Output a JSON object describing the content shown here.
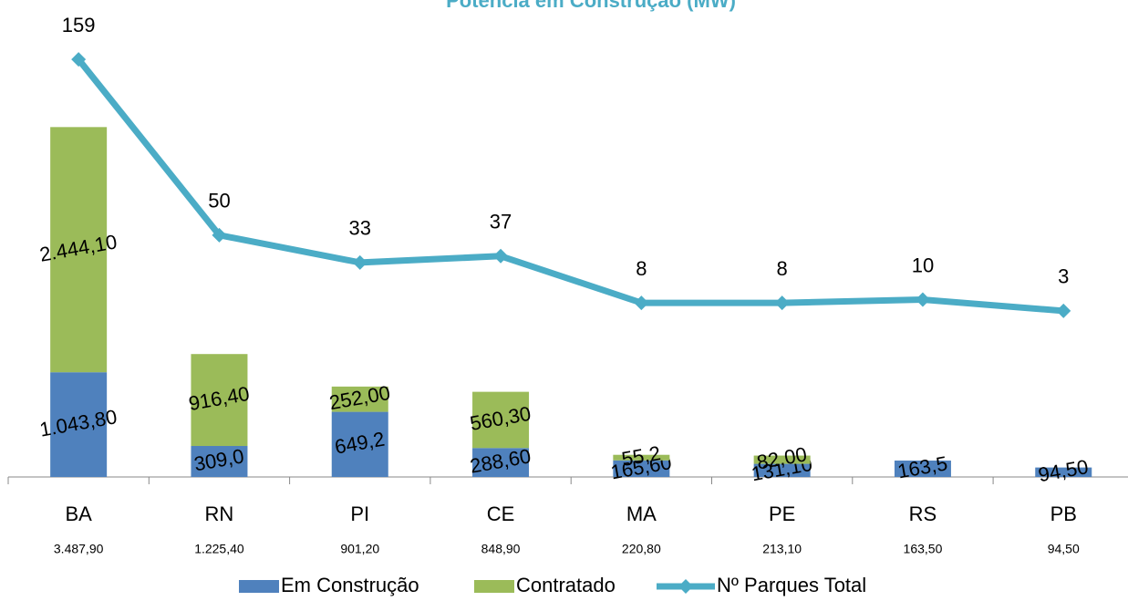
{
  "chart_data": {
    "type": "bar-line",
    "title": "Potência em Construção (MW)",
    "categories": [
      "BA",
      "RN",
      "PI",
      "CE",
      "MA",
      "PE",
      "RS",
      "PB"
    ],
    "totals": [
      3487.9,
      1225.4,
      901.2,
      848.9,
      220.8,
      213.1,
      163.5,
      94.5
    ],
    "totals_labels": [
      "3.487,90",
      "1.225,40",
      "901,20",
      "848,90",
      "220,80",
      "213,10",
      "163,50",
      "94,50"
    ],
    "series": [
      {
        "name": "Em Construção",
        "color": "#4f81bd",
        "values": [
          1043.8,
          309.0,
          649.2,
          288.6,
          165.6,
          131.1,
          163.5,
          94.5
        ],
        "value_labels": [
          "1.043,80",
          "309,0",
          "649,2",
          "288,60",
          "165,60",
          "131,10",
          "163,5",
          "94,50"
        ]
      },
      {
        "name": "Contratado",
        "color": "#9bbb59",
        "values": [
          2444.1,
          916.4,
          252.0,
          560.3,
          55.2,
          82.0,
          null,
          null
        ],
        "value_labels": [
          "2.444,10",
          "916,40",
          "252,00",
          "560,30",
          "55,2",
          "82,00",
          null,
          null
        ]
      },
      {
        "name": "Nº Parques Total",
        "color": "#4bacc6",
        "axis": "y2",
        "values": [
          159,
          50,
          33,
          37,
          8,
          8,
          10,
          3
        ]
      }
    ],
    "ylim": [
      0,
      4500
    ],
    "y2lim": [
      -100,
      180
    ]
  }
}
